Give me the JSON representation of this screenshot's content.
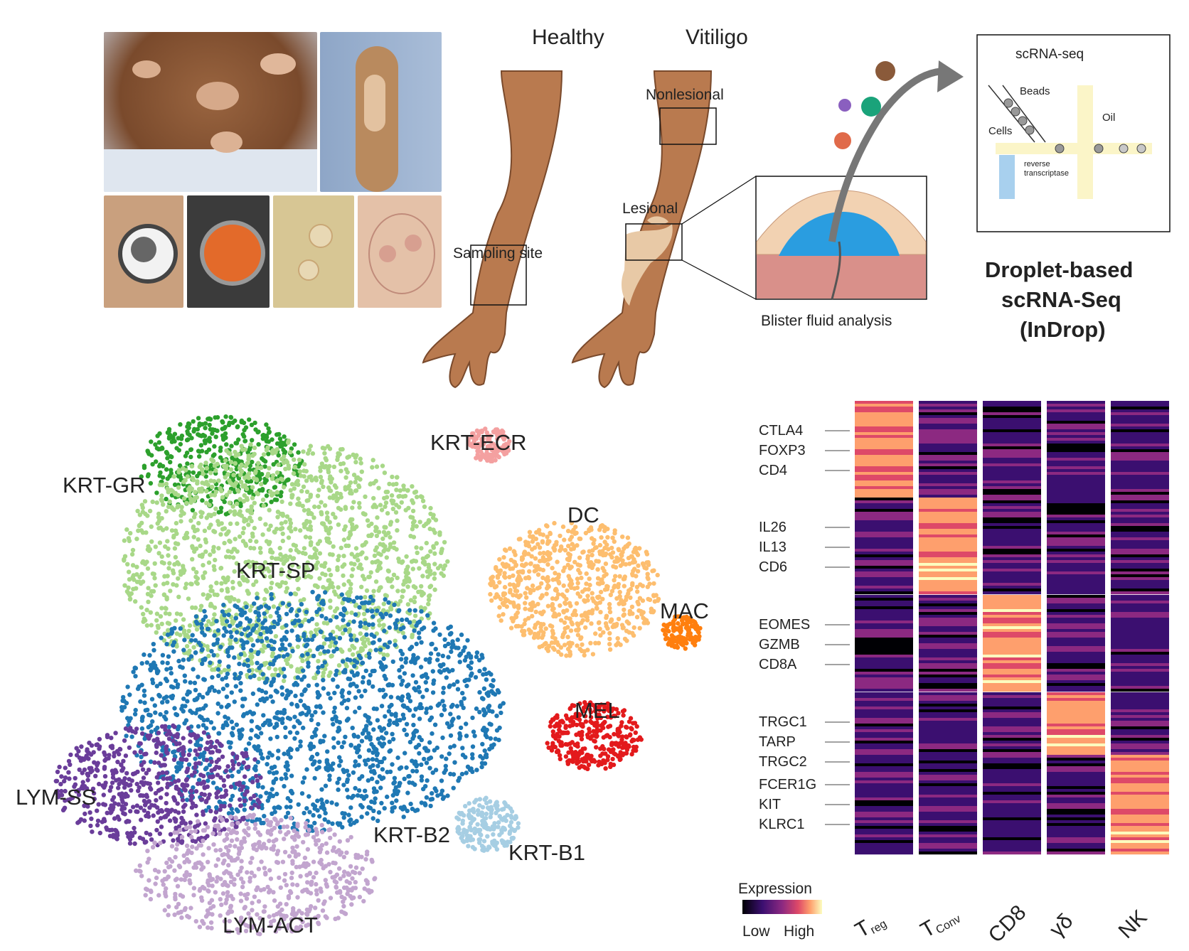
{
  "panel_a": {
    "arm_labels": {
      "healthy": "Healthy",
      "vitiligo": "Vitiligo"
    },
    "region_labels": {
      "sampling_site": "Sampling site",
      "nonlesional": "Nonlesional",
      "lesional": "Lesional"
    },
    "blister_caption": "Blister fluid analysis",
    "scrna_box": {
      "title": "scRNA-seq",
      "beads": "Beads",
      "oil": "Oil",
      "cells": "Cells",
      "rt_line1": "reverse",
      "rt_line2": "transcriptase"
    },
    "method_title": {
      "line1": "Droplet-based",
      "line2": "scRNA-Seq",
      "line3": "(InDrop)"
    },
    "colors": {
      "skin": "#b97a4f",
      "depigmented": "#e8c9a6",
      "blister": "#2a9de0",
      "dermis": "#d9908a"
    }
  },
  "tsne": {
    "clusters": [
      {
        "name": "KRT-GR",
        "color": "#2ca02c"
      },
      {
        "name": "KRT-SP",
        "color": "#a8d888"
      },
      {
        "name": "KRT-ECR",
        "color": "#f4a0a0"
      },
      {
        "name": "DC",
        "color": "#fdbe6f"
      },
      {
        "name": "MAC",
        "color": "#ff7f0e"
      },
      {
        "name": "MEL",
        "color": "#e31a1c"
      },
      {
        "name": "KRT-B2",
        "color": "#1f78b4"
      },
      {
        "name": "KRT-B1",
        "color": "#a6cee3"
      },
      {
        "name": "LYM-SS",
        "color": "#6a3d9a"
      },
      {
        "name": "LYM-ACT",
        "color": "#c2a5cf"
      }
    ]
  },
  "heatmap": {
    "columns": [
      "Treg",
      "TConv",
      "CD8",
      "γδ",
      "NK"
    ],
    "column_labels": {
      "treg_main": "T",
      "treg_sub": "reg",
      "tconv_main": "T",
      "tconv_sub": "Conv",
      "cd8": "CD8",
      "gd": "γδ",
      "nk": "NK"
    },
    "gene_blocks": [
      [
        "CTLA4",
        "FOXP3",
        "CD4"
      ],
      [
        "IL26",
        "IL13",
        "CD6"
      ],
      [
        "EOMES",
        "GZMB",
        "CD8A"
      ],
      [
        "TRGC1",
        "TARP",
        "TRGC2"
      ],
      [
        "FCER1G",
        "KIT",
        "KLRC1"
      ]
    ],
    "block_high_column": [
      0,
      1,
      2,
      3,
      4
    ],
    "legend": {
      "title": "Expression",
      "low": "Low",
      "high": "High"
    },
    "colormap": [
      "#000004",
      "#3b0f70",
      "#8c2981",
      "#de4968",
      "#fe9f6d",
      "#fcfdbf"
    ]
  }
}
